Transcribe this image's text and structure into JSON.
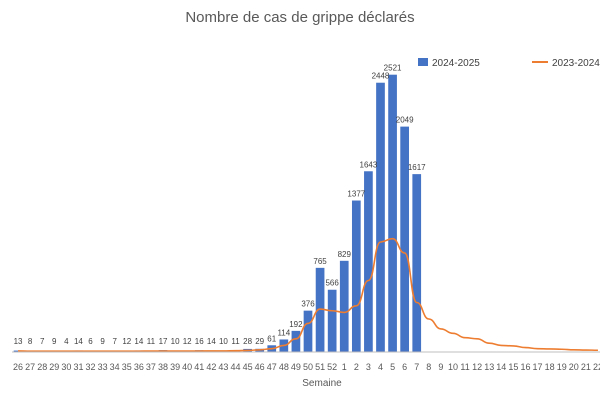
{
  "chart_data": {
    "type": "bar",
    "title": "Nombre de cas de grippe déclarés",
    "xlabel": "Semaine",
    "ylabel": "",
    "ylim": [
      0,
      3000
    ],
    "grid": false,
    "legend_position": "top-right",
    "categories": [
      "26",
      "27",
      "28",
      "29",
      "30",
      "31",
      "32",
      "33",
      "34",
      "35",
      "36",
      "37",
      "38",
      "39",
      "40",
      "41",
      "42",
      "43",
      "44",
      "45",
      "46",
      "47",
      "48",
      "49",
      "50",
      "51",
      "52",
      "1",
      "2",
      "3",
      "4",
      "5",
      "6",
      "7",
      "8",
      "9",
      "10",
      "11",
      "12",
      "13",
      "14",
      "15",
      "16",
      "17",
      "18",
      "19",
      "20",
      "21",
      "22"
    ],
    "series": [
      {
        "name": "2024-2025",
        "type": "bar",
        "color": "#4472C4",
        "values": [
          13,
          8,
          7,
          9,
          4,
          14,
          6,
          9,
          7,
          12,
          14,
          11,
          17,
          10,
          12,
          16,
          14,
          10,
          11,
          28,
          29,
          61,
          114,
          192,
          376,
          765,
          566,
          829,
          1377,
          1643,
          2448,
          2521,
          2049,
          1617,
          null,
          null,
          null,
          null,
          null,
          null,
          null,
          null,
          null,
          null,
          null,
          null,
          null,
          null,
          null
        ]
      },
      {
        "name": "2023-2024",
        "type": "line",
        "color": "#ED7D31",
        "values": [
          10,
          8,
          8,
          8,
          8,
          8,
          8,
          8,
          8,
          8,
          8,
          9,
          9,
          9,
          9,
          9,
          10,
          10,
          12,
          14,
          20,
          30,
          60,
          120,
          260,
          390,
          375,
          360,
          420,
          650,
          1000,
          1030,
          900,
          450,
          300,
          210,
          170,
          130,
          120,
          80,
          60,
          55,
          40,
          30,
          28,
          25,
          20,
          18,
          16
        ]
      }
    ]
  }
}
